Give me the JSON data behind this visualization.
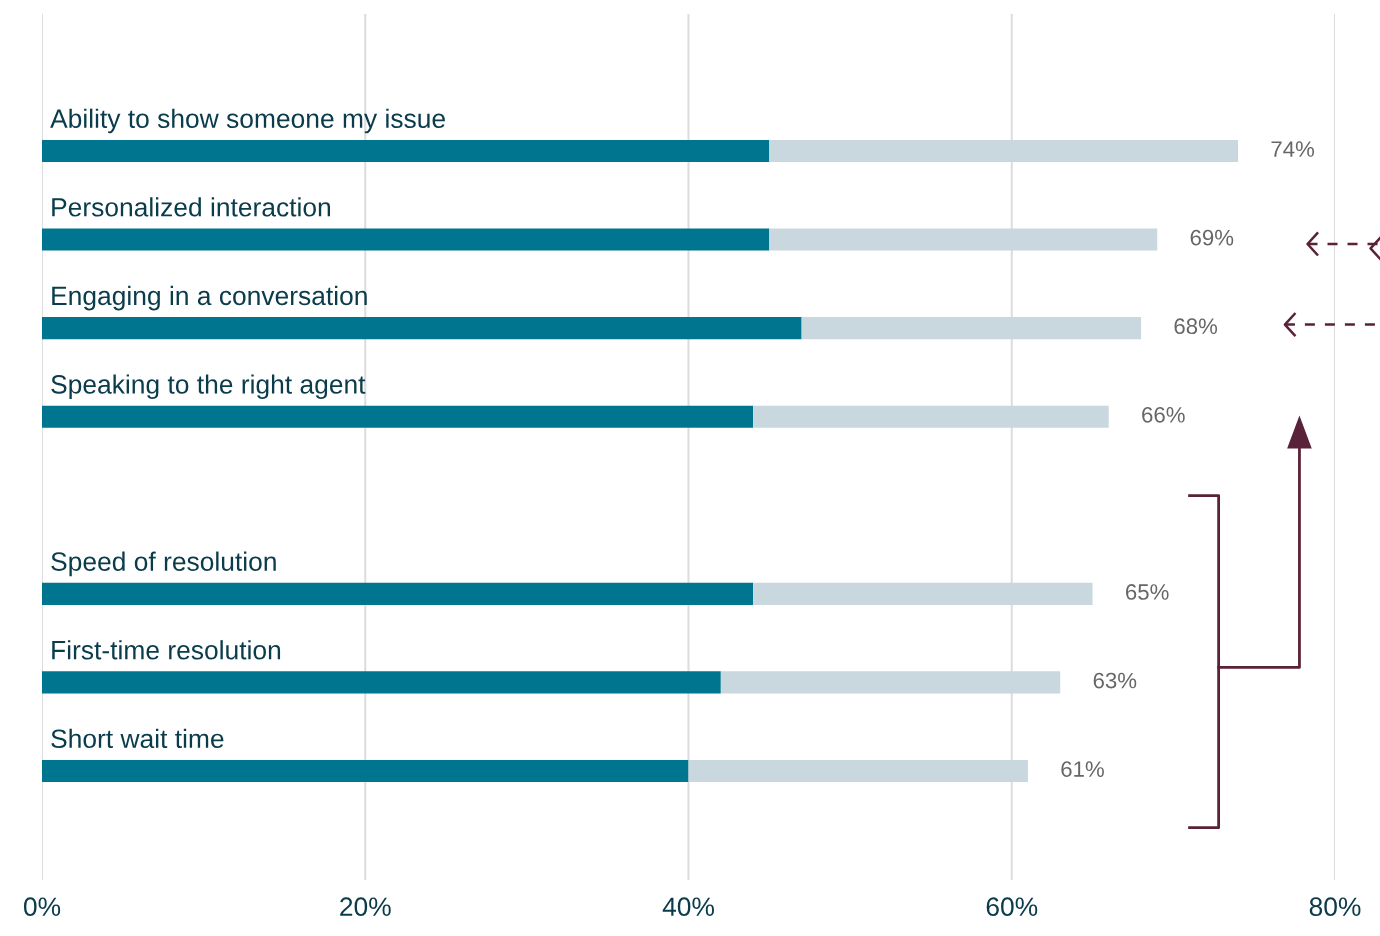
{
  "chart_data": {
    "type": "bar",
    "orientation": "horizontal",
    "stacked": true,
    "categories": [
      "Ability to show someone my issue",
      "Personalized interaction",
      "Engaging in a conversation",
      "Speaking to the right agent",
      null,
      "Speed of resolution",
      "First-time resolution",
      "Short wait time"
    ],
    "series": [
      {
        "color": "#00758f",
        "values": [
          45,
          45,
          47,
          44,
          null,
          44,
          42,
          40
        ]
      },
      {
        "color": "#c9d8de",
        "values": [
          29,
          24,
          21,
          22,
          null,
          21,
          21,
          21
        ]
      }
    ],
    "totals": [
      "74%",
      "69%",
      "68%",
      "66%",
      null,
      "65%",
      "63%",
      "61%"
    ],
    "xlim": [
      0,
      80
    ],
    "xticks": [
      {
        "value": 0,
        "label": "0%"
      },
      {
        "value": 20,
        "label": "20%"
      },
      {
        "value": 40,
        "label": "40%"
      },
      {
        "value": 60,
        "label": "60%"
      },
      {
        "value": 80,
        "label": "80%"
      }
    ],
    "grid": "x",
    "tick_labels": "x",
    "legend": false
  }
}
